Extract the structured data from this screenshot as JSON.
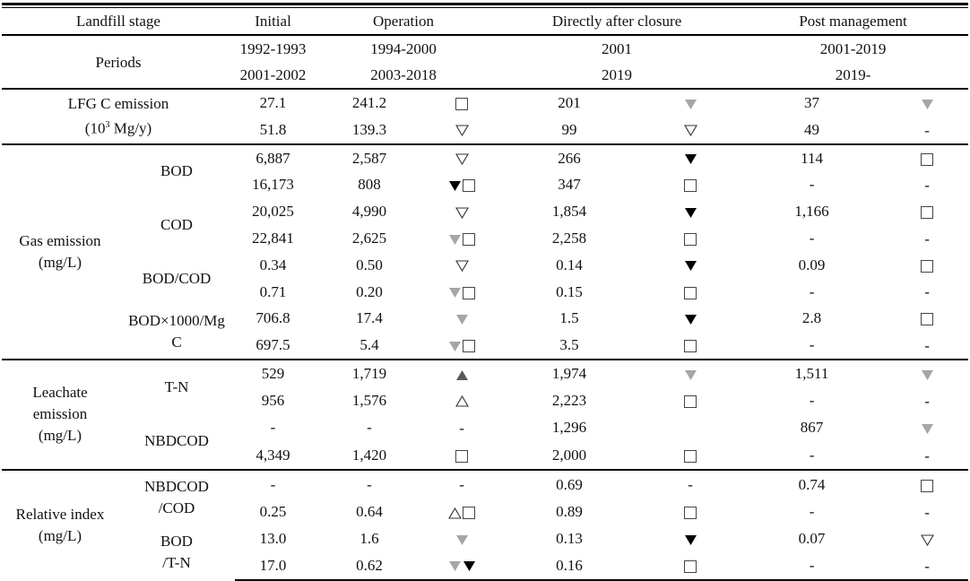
{
  "colors": {
    "black": "#000000",
    "gray_light": "#a6a6a6",
    "gray_dark": "#5a5a5a"
  },
  "header": {
    "stage_label": "Landfill stage",
    "stages": [
      "Initial",
      "Operation",
      "Directly after closure",
      "Post management"
    ],
    "periods_label": "Periods",
    "periods": [
      [
        "1992-1993",
        "2001-2002"
      ],
      [
        "1994-2000",
        "2003-2018"
      ],
      [
        "2001",
        "2019"
      ],
      [
        "2001-2019",
        "2019-"
      ]
    ]
  },
  "groups": [
    {
      "label": "LFG C emission",
      "label2": "(10",
      "sup": "3",
      "label3": " Mg/y)",
      "rows": [
        {
          "sub": "",
          "v": [
            "27.1",
            "241.2",
            "201",
            "37"
          ],
          "s": [
            [
              "sq"
            ],
            [
              "tri-down-gray"
            ],
            [
              "tri-down-gray"
            ]
          ]
        },
        {
          "sub": "",
          "v": [
            "51.8",
            "139.3",
            "99",
            "49"
          ],
          "s": [
            [
              "tri-down-open"
            ],
            [
              "tri-down-open"
            ],
            [
              "dash"
            ]
          ]
        }
      ]
    },
    {
      "label": "Gas emission",
      "label2": "(mg/L)",
      "rows": [
        {
          "sub": "BOD",
          "v": [
            "6,887",
            "2,587",
            "266",
            "114"
          ],
          "s": [
            [
              "tri-down-open"
            ],
            [
              "tri-down-black"
            ],
            [
              "sq"
            ]
          ]
        },
        {
          "sub": "",
          "v": [
            "16,173",
            "808",
            "347",
            "-"
          ],
          "s": [
            [
              "tri-down-black",
              "sq"
            ],
            [
              "sq"
            ],
            [
              "dash"
            ]
          ]
        },
        {
          "sub": "COD",
          "v": [
            "20,025",
            "4,990",
            "1,854",
            "1,166"
          ],
          "s": [
            [
              "tri-down-open"
            ],
            [
              "tri-down-black"
            ],
            [
              "sq"
            ]
          ]
        },
        {
          "sub": "",
          "v": [
            "22,841",
            "2,625",
            "2,258",
            "-"
          ],
          "s": [
            [
              "tri-down-gray",
              "sq"
            ],
            [
              "sq"
            ],
            [
              "dash"
            ]
          ]
        },
        {
          "sub": "BOD/COD",
          "v": [
            "0.34",
            "0.50",
            "0.14",
            "0.09"
          ],
          "s": [
            [
              "tri-down-open"
            ],
            [
              "tri-down-black"
            ],
            [
              "sq"
            ]
          ]
        },
        {
          "sub": "",
          "v": [
            "0.71",
            "0.20",
            "0.15",
            "-"
          ],
          "s": [
            [
              "tri-down-gray",
              "sq"
            ],
            [
              "sq"
            ],
            [
              "dash"
            ]
          ]
        },
        {
          "sub": "BOD×1000/Mg",
          "v": [
            "706.8",
            "17.4",
            "1.5",
            "2.8"
          ],
          "s": [
            [
              "tri-down-gray"
            ],
            [
              "tri-down-black"
            ],
            [
              "sq"
            ]
          ]
        },
        {
          "sub": "C",
          "v": [
            "697.5",
            "5.4",
            "3.5",
            "-"
          ],
          "s": [
            [
              "tri-down-gray",
              "sq"
            ],
            [
              "sq"
            ],
            [
              "dash"
            ]
          ]
        }
      ]
    },
    {
      "label": "Leachate emission",
      "label2": "(mg/L)",
      "rows": [
        {
          "sub": "T-N",
          "v": [
            "529",
            "1,719",
            "1,974",
            "1,511"
          ],
          "s": [
            [
              "tri-up-dark"
            ],
            [
              "tri-down-gray"
            ],
            [
              "tri-down-gray"
            ]
          ]
        },
        {
          "sub": "",
          "v": [
            "956",
            "1,576",
            "2,223",
            "-"
          ],
          "s": [
            [
              "tri-up-open"
            ],
            [
              "sq"
            ],
            [
              "dash"
            ]
          ]
        },
        {
          "sub": "NBDCOD",
          "v": [
            "-",
            "-",
            "1,296",
            "867"
          ],
          "s": [
            [
              "dash"
            ],
            [],
            [
              "tri-down-gray"
            ]
          ]
        },
        {
          "sub": "",
          "v": [
            "4,349",
            "1,420",
            "2,000",
            "-"
          ],
          "s": [
            [
              "sq"
            ],
            [
              "sq"
            ],
            [
              "dash"
            ]
          ]
        }
      ]
    },
    {
      "label": "Relative index",
      "label2": "(mg/L)",
      "rows": [
        {
          "sub": "NBDCOD",
          "v": [
            "-",
            "-",
            "0.69",
            "0.74"
          ],
          "s": [
            [
              "dash"
            ],
            [
              "dash"
            ],
            [
              "sq"
            ]
          ]
        },
        {
          "sub": "/COD",
          "v": [
            "0.25",
            "0.64",
            "0.89",
            "-"
          ],
          "s": [
            [
              "tri-up-open",
              "sq"
            ],
            [
              "sq"
            ],
            [
              "dash"
            ]
          ]
        },
        {
          "sub": "BOD",
          "v": [
            "13.0",
            "1.6",
            "0.13",
            "0.07"
          ],
          "s": [
            [
              "tri-down-gray"
            ],
            [
              "tri-down-black"
            ],
            [
              "tri-down-open"
            ]
          ]
        },
        {
          "sub": "/T-N",
          "v": [
            "17.0",
            "0.62",
            "0.16",
            "-"
          ],
          "s": [
            [
              "tri-down-gray",
              "tri-down-black"
            ],
            [
              "sq"
            ],
            [
              "dash"
            ]
          ]
        }
      ]
    }
  ]
}
